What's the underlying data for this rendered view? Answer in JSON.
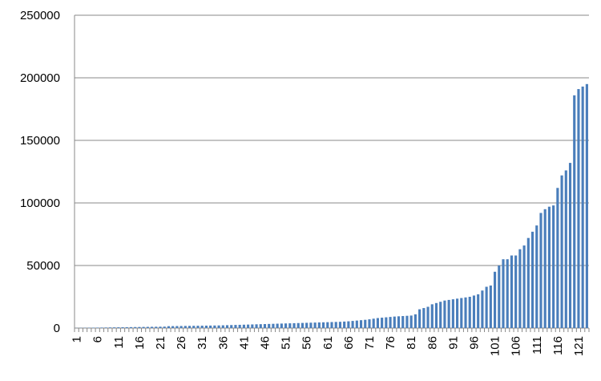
{
  "chart_data": {
    "type": "bar",
    "categories": [
      "1",
      null,
      null,
      null,
      null,
      "6",
      null,
      null,
      null,
      null,
      "11",
      null,
      null,
      null,
      null,
      "16",
      null,
      null,
      null,
      null,
      "21",
      null,
      null,
      null,
      null,
      "26",
      null,
      null,
      null,
      null,
      "31",
      null,
      null,
      null,
      null,
      "36",
      null,
      null,
      null,
      null,
      "41",
      null,
      null,
      null,
      null,
      "46",
      null,
      null,
      null,
      null,
      "51",
      null,
      null,
      null,
      null,
      "56",
      null,
      null,
      null,
      null,
      "61",
      null,
      null,
      null,
      null,
      "66",
      null,
      null,
      null,
      null,
      "71",
      null,
      null,
      null,
      null,
      "76",
      null,
      null,
      null,
      null,
      "81",
      null,
      null,
      null,
      null,
      "86",
      null,
      null,
      null,
      null,
      "91",
      null,
      null,
      null,
      null,
      "96",
      null,
      null,
      null,
      null,
      "101",
      null,
      null,
      null,
      null,
      "106",
      null,
      null,
      null,
      null,
      "111",
      null,
      null,
      null,
      null,
      "116",
      null,
      null,
      null,
      null,
      "121",
      null,
      null
    ],
    "values": [
      100,
      150,
      200,
      250,
      300,
      350,
      400,
      450,
      500,
      550,
      600,
      650,
      700,
      750,
      800,
      850,
      900,
      950,
      1000,
      1050,
      1100,
      1150,
      1500,
      1550,
      1600,
      1650,
      1700,
      1750,
      1800,
      1850,
      1900,
      1950,
      2000,
      2050,
      2100,
      2200,
      2300,
      2400,
      2500,
      2600,
      2700,
      2800,
      2900,
      3000,
      3100,
      3200,
      3300,
      3400,
      3500,
      3600,
      3700,
      3800,
      3900,
      4000,
      4100,
      4200,
      4300,
      4400,
      4500,
      4600,
      4700,
      4800,
      4900,
      5000,
      5200,
      5400,
      5700,
      6000,
      6300,
      6600,
      7000,
      7500,
      8000,
      8300,
      8600,
      8900,
      9200,
      9400,
      9600,
      9800,
      10000,
      11000,
      15000,
      16000,
      17000,
      19000,
      20000,
      21000,
      22000,
      22500,
      23000,
      23500,
      24000,
      24500,
      25000,
      26000,
      27000,
      30000,
      33000,
      34000,
      45000,
      50000,
      55000,
      55000,
      58000,
      58000,
      63000,
      66000,
      72000,
      77000,
      82000,
      92000,
      95000,
      97000,
      98000,
      112000,
      122000,
      126000,
      132000,
      186000,
      191000,
      193000,
      195000
    ],
    "color": "#4a7ebb",
    "ylim": [
      0,
      250000
    ],
    "yticks": [
      0,
      50000,
      100000,
      150000,
      200000,
      250000
    ],
    "grid": true
  }
}
